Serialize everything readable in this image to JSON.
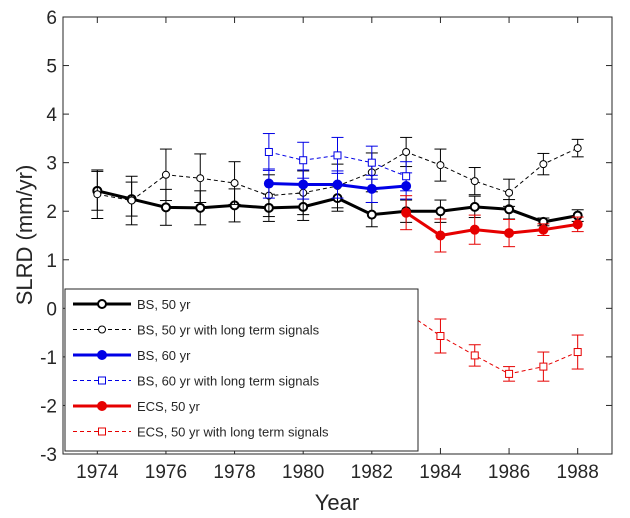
{
  "chart_data": {
    "type": "line",
    "xlabel": "Year",
    "ylabel": "SLRD (mm/yr)",
    "xlim": [
      1973,
      1989
    ],
    "ylim": [
      -3,
      6
    ],
    "xticks": [
      1974,
      1976,
      1978,
      1980,
      1982,
      1984,
      1986,
      1988
    ],
    "yticks": [
      -3,
      -2,
      -1,
      0,
      1,
      2,
      3,
      4,
      5,
      6
    ],
    "grid": false,
    "legend_position": "lower-left",
    "series": [
      {
        "name": "BS, 50 yr",
        "color": "#000000",
        "line": "solid",
        "marker": "circle",
        "filled": false,
        "x": [
          1974,
          1975,
          1976,
          1977,
          1978,
          1979,
          1980,
          1981,
          1982,
          1983,
          1984,
          1985,
          1986,
          1987,
          1988
        ],
        "y": [
          2.42,
          2.25,
          2.08,
          2.07,
          2.12,
          2.07,
          2.09,
          2.27,
          1.93,
          2.0,
          2.0,
          2.09,
          2.04,
          1.78,
          1.91
        ],
        "err": [
          0.4,
          0.35,
          0.37,
          0.35,
          0.34,
          0.28,
          0.28,
          0.27,
          0.25,
          0.23,
          0.23,
          0.22,
          0.2,
          0.08,
          0.12
        ]
      },
      {
        "name": "BS, 50 yr with long term signals",
        "color": "#000000",
        "line": "dashed",
        "marker": "circle",
        "filled": false,
        "x": [
          1974,
          1975,
          1976,
          1977,
          1978,
          1979,
          1980,
          1981,
          1982,
          1983,
          1984,
          1985,
          1986,
          1987,
          1988
        ],
        "y": [
          2.35,
          2.22,
          2.75,
          2.68,
          2.58,
          2.32,
          2.38,
          2.52,
          2.8,
          3.22,
          2.95,
          2.62,
          2.38,
          2.97,
          3.3
        ],
        "err": [
          0.5,
          0.5,
          0.53,
          0.5,
          0.44,
          0.43,
          0.45,
          0.45,
          0.4,
          0.3,
          0.33,
          0.28,
          0.28,
          0.22,
          0.18
        ]
      },
      {
        "name": "BS, 60 yr",
        "color": "#0000e6",
        "line": "solid",
        "marker": "circle",
        "filled": true,
        "x": [
          1979,
          1980,
          1981,
          1982,
          1983
        ],
        "y": [
          2.57,
          2.55,
          2.55,
          2.46,
          2.52
        ],
        "err": [
          0.3,
          0.3,
          0.28,
          0.28,
          0.27
        ]
      },
      {
        "name": "BS, 60 yr with long term signals",
        "color": "#0000e6",
        "line": "dashed",
        "marker": "square",
        "filled": false,
        "x": [
          1979,
          1980,
          1981,
          1982,
          1983
        ],
        "y": [
          3.22,
          3.05,
          3.15,
          3.0,
          2.72
        ],
        "err": [
          0.38,
          0.37,
          0.37,
          0.34,
          0.3
        ]
      },
      {
        "name": "ECS, 50 yr",
        "color": "#e60000",
        "line": "solid",
        "marker": "circle",
        "filled": true,
        "x": [
          1983,
          1984,
          1985,
          1986,
          1987,
          1988
        ],
        "y": [
          1.97,
          1.5,
          1.62,
          1.55,
          1.62,
          1.73
        ],
        "err": [
          0.35,
          0.34,
          0.3,
          0.28,
          0.12,
          0.15
        ]
      },
      {
        "name": "ECS, 50 yr with long term signals",
        "color": "#e60000",
        "line": "dashed",
        "marker": "square",
        "filled": false,
        "x": [
          1983,
          1984,
          1985,
          1986,
          1987,
          1988
        ],
        "y": [
          -0.08,
          -0.57,
          -0.97,
          -1.35,
          -1.2,
          -0.9
        ],
        "err": [
          0.35,
          0.35,
          0.22,
          0.15,
          0.3,
          0.35
        ]
      }
    ]
  }
}
